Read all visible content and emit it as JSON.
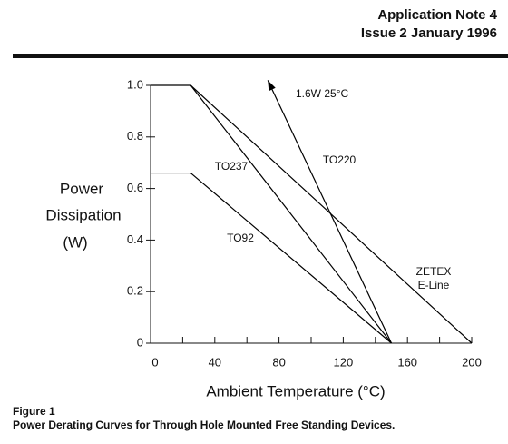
{
  "header": {
    "title": "Application Note 4",
    "issue": "Issue 2 January 1996"
  },
  "chart_data": {
    "type": "line",
    "ylabel": [
      "Power",
      "Dissipation",
      "(W)"
    ],
    "xlabel": "Ambient Temperature (°C)",
    "xlim": [
      0,
      200
    ],
    "ylim": [
      0,
      1
    ],
    "xticks": [
      0,
      40,
      80,
      120,
      160,
      200
    ],
    "xminor": [
      20,
      60,
      100,
      140,
      180
    ],
    "yticks": [
      0,
      0.2,
      0.4,
      0.6,
      0.8,
      {
        "value": 1,
        "label": "1.0"
      }
    ],
    "annotation": "1.6W  25°C",
    "series": [
      {
        "name": "TO237",
        "color": "#000000",
        "x": [
          25,
          150
        ],
        "values": [
          1.0,
          0
        ]
      },
      {
        "name": "TO220",
        "color": "#000000",
        "x": [
          150,
          73
        ],
        "values": [
          0,
          1.02
        ],
        "arrow": true
      },
      {
        "name": "ZETEX E-Line",
        "color": "#000000",
        "x": [
          0,
          25,
          200
        ],
        "values": [
          1.0,
          1.0,
          0
        ]
      },
      {
        "name": "TO92",
        "color": "#000000",
        "x": [
          0,
          25,
          150
        ],
        "values": [
          0.66,
          0.66,
          0
        ]
      }
    ]
  },
  "figure": {
    "label": "Figure 1",
    "caption": "Power Derating Curves for Through Hole Mounted Free Standing Devices."
  }
}
